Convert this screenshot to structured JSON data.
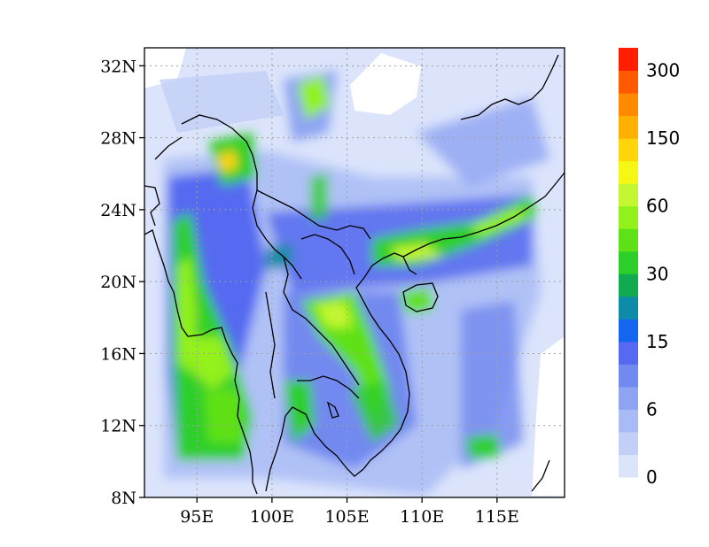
{
  "map": {
    "lat_ticks": [
      "8N",
      "12N",
      "16N",
      "20N",
      "24N",
      "28N",
      "32N"
    ],
    "lon_ticks": [
      "95E",
      "100E",
      "105E",
      "110E",
      "115E"
    ],
    "lat_range": [
      8,
      33
    ],
    "lon_range": [
      91.5,
      119.5
    ],
    "gridlines": true
  },
  "colorbar": {
    "colors": [
      "#dbe4fb",
      "#c2d0f8",
      "#a9bbf6",
      "#8ea4f3",
      "#7289ef",
      "#556af0",
      "#1466f0",
      "#0d8ba8",
      "#10aa50",
      "#2ecf2a",
      "#5fe119",
      "#93f11b",
      "#c4f732",
      "#f7f715",
      "#ffd40a",
      "#ffb000",
      "#ff8a00",
      "#ff5a00",
      "#ff1e00"
    ],
    "labels": [
      "0",
      "6",
      "15",
      "30",
      "60",
      "150",
      "300"
    ],
    "label_steps": [
      0,
      3,
      6,
      9,
      12,
      15,
      18
    ]
  }
}
